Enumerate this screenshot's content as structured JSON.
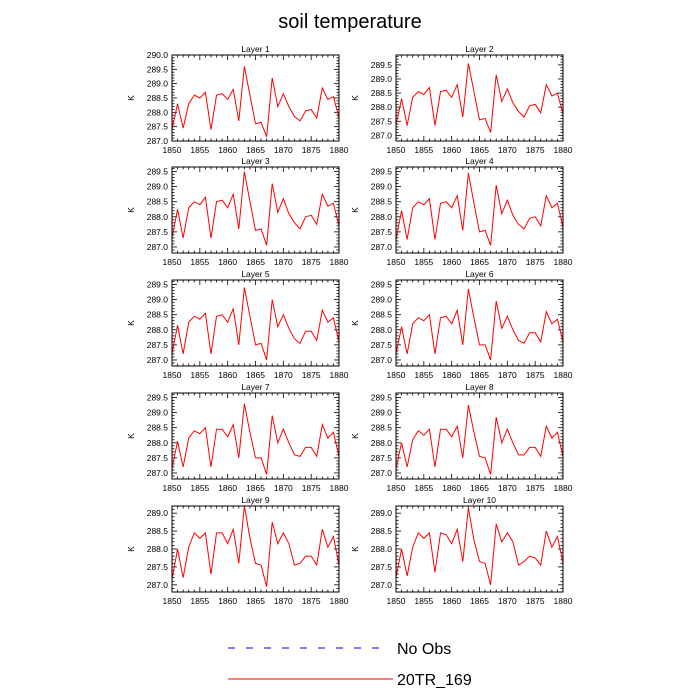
{
  "title": "soil temperature",
  "colors": {
    "model": "#ff0000",
    "obs": "#0000ff"
  },
  "legend": [
    {
      "label": "No Obs",
      "color": "#0000ff",
      "style": "dashed"
    },
    {
      "label": "20TR_169",
      "color": "#ff0000",
      "style": "solid"
    }
  ],
  "chart_data": {
    "type": "line",
    "xlabel": "",
    "ylabel": "K",
    "xlim": [
      1850,
      1880
    ],
    "x_ticks": [
      1850,
      1855,
      1860,
      1865,
      1870,
      1875,
      1880
    ],
    "x": [
      1850,
      1851,
      1852,
      1853,
      1854,
      1855,
      1856,
      1857,
      1858,
      1859,
      1860,
      1861,
      1862,
      1863,
      1864,
      1865,
      1866,
      1867,
      1868,
      1869,
      1870,
      1871,
      1872,
      1873,
      1874,
      1875,
      1876,
      1877,
      1878,
      1879,
      1880
    ],
    "panels": [
      {
        "title": "Layer 1",
        "ylim": [
          287.0,
          290.0
        ],
        "yticks": [
          "287.0",
          "287.5",
          "288.0",
          "288.5",
          "289.0",
          "289.5",
          "290.0"
        ],
        "series": [
          {
            "name": "20TR_169",
            "values": [
              287.4,
              288.3,
              287.45,
              288.3,
              288.6,
              288.5,
              288.7,
              287.4,
              288.6,
              288.65,
              288.45,
              288.8,
              287.7,
              289.6,
              288.6,
              287.6,
              287.65,
              287.15,
              289.2,
              288.2,
              288.65,
              288.2,
              287.85,
              287.7,
              288.05,
              288.1,
              287.8,
              288.85,
              288.45,
              288.55,
              287.8
            ]
          }
        ]
      },
      {
        "title": "Layer 2",
        "ylim": [
          286.8,
          289.85
        ],
        "yticks": [
          "287.0",
          "287.5",
          "288.0",
          "288.5",
          "289.0",
          "289.5"
        ],
        "series": [
          {
            "name": "20TR_169",
            "values": [
              287.35,
              288.3,
              287.35,
              288.35,
              288.55,
              288.45,
              288.7,
              287.35,
              288.55,
              288.6,
              288.35,
              288.8,
              287.65,
              289.55,
              288.55,
              287.55,
              287.6,
              287.1,
              289.15,
              288.2,
              288.65,
              288.15,
              287.85,
              287.65,
              288.05,
              288.1,
              287.8,
              288.8,
              288.4,
              288.5,
              287.75
            ]
          }
        ]
      },
      {
        "title": "Layer 3",
        "ylim": [
          286.8,
          289.65
        ],
        "yticks": [
          "287.0",
          "287.5",
          "288.0",
          "288.5",
          "289.0",
          "289.5"
        ],
        "series": [
          {
            "name": "20TR_169",
            "values": [
              287.3,
              288.25,
              287.3,
              288.3,
              288.5,
              288.4,
              288.65,
              287.3,
              288.5,
              288.55,
              288.3,
              288.75,
              287.6,
              289.5,
              288.5,
              287.55,
              287.6,
              287.05,
              289.1,
              288.15,
              288.6,
              288.1,
              287.8,
              287.6,
              288.0,
              288.05,
              287.75,
              288.75,
              288.35,
              288.45,
              287.7
            ]
          }
        ]
      },
      {
        "title": "Layer 4",
        "ylim": [
          286.8,
          289.65
        ],
        "yticks": [
          "287.0",
          "287.5",
          "288.0",
          "288.5",
          "289.0",
          "289.5"
        ],
        "series": [
          {
            "name": "20TR_169",
            "values": [
              287.25,
              288.2,
              287.25,
              288.3,
              288.5,
              288.4,
              288.6,
              287.25,
              288.45,
              288.5,
              288.3,
              288.7,
              287.55,
              289.45,
              288.45,
              287.5,
              287.55,
              287.05,
              289.05,
              288.1,
              288.55,
              288.05,
              287.75,
              287.6,
              287.95,
              288.0,
              287.7,
              288.7,
              288.3,
              288.45,
              287.65
            ]
          }
        ]
      },
      {
        "title": "Layer 5",
        "ylim": [
          286.8,
          289.65
        ],
        "yticks": [
          "287.0",
          "287.5",
          "288.0",
          "288.5",
          "289.0",
          "289.5"
        ],
        "series": [
          {
            "name": "20TR_169",
            "values": [
              287.2,
              288.15,
              287.2,
              288.25,
              288.45,
              288.35,
              288.55,
              287.2,
              288.45,
              288.5,
              288.25,
              288.7,
              287.5,
              289.4,
              288.45,
              287.5,
              287.55,
              287.0,
              289.0,
              288.1,
              288.5,
              288.05,
              287.7,
              287.55,
              287.95,
              287.95,
              287.65,
              288.65,
              288.25,
              288.4,
              287.6
            ]
          }
        ]
      },
      {
        "title": "Layer 6",
        "ylim": [
          286.8,
          289.65
        ],
        "yticks": [
          "287.0",
          "287.5",
          "288.0",
          "288.5",
          "289.0",
          "289.5"
        ],
        "series": [
          {
            "name": "20TR_169",
            "values": [
              287.2,
              288.1,
              287.2,
              288.2,
              288.4,
              288.3,
              288.5,
              287.2,
              288.4,
              288.45,
              288.2,
              288.65,
              287.5,
              289.35,
              288.4,
              287.5,
              287.5,
              287.0,
              288.95,
              288.05,
              288.45,
              288.0,
              287.65,
              287.55,
              287.9,
              287.9,
              287.6,
              288.6,
              288.2,
              288.35,
              287.6
            ]
          }
        ]
      },
      {
        "title": "Layer 7",
        "ylim": [
          286.8,
          289.65
        ],
        "yticks": [
          "287.0",
          "287.5",
          "288.0",
          "288.5",
          "289.0",
          "289.5"
        ],
        "series": [
          {
            "name": "20TR_169",
            "values": [
              287.15,
              288.05,
              287.2,
              288.15,
              288.4,
              288.3,
              288.5,
              287.2,
              288.45,
              288.45,
              288.2,
              288.6,
              287.5,
              289.3,
              288.35,
              287.5,
              287.5,
              286.95,
              288.9,
              288.0,
              288.45,
              288.0,
              287.6,
              287.55,
              287.85,
              287.85,
              287.55,
              288.6,
              288.15,
              288.35,
              287.55
            ]
          }
        ]
      },
      {
        "title": "Layer 8",
        "ylim": [
          286.8,
          289.65
        ],
        "yticks": [
          "287.0",
          "287.5",
          "288.0",
          "288.5",
          "289.0",
          "289.5"
        ],
        "series": [
          {
            "name": "20TR_169",
            "values": [
              287.15,
              288.0,
              287.2,
              288.1,
              288.4,
              288.25,
              288.45,
              287.2,
              288.45,
              288.45,
              288.2,
              288.55,
              287.5,
              289.25,
              288.35,
              287.55,
              287.5,
              286.95,
              288.85,
              288.0,
              288.45,
              288.0,
              287.6,
              287.6,
              287.85,
              287.85,
              287.55,
              288.55,
              288.15,
              288.35,
              287.55
            ]
          }
        ]
      },
      {
        "title": "Layer 9",
        "ylim": [
          286.8,
          289.2
        ],
        "yticks": [
          "287.0",
          "287.5",
          "288.0",
          "288.5",
          "289.0"
        ],
        "series": [
          {
            "name": "20TR_169",
            "values": [
              287.15,
              288.0,
              287.2,
              288.05,
              288.45,
              288.3,
              288.45,
              287.3,
              288.45,
              288.45,
              288.15,
              288.55,
              287.6,
              289.2,
              288.3,
              287.6,
              287.55,
              286.95,
              288.75,
              288.15,
              288.45,
              288.15,
              287.55,
              287.6,
              287.8,
              287.8,
              287.55,
              288.55,
              288.05,
              288.35,
              287.55
            ]
          }
        ]
      },
      {
        "title": "Layer 10",
        "ylim": [
          286.8,
          289.2
        ],
        "yticks": [
          "287.0",
          "287.5",
          "288.0",
          "288.5",
          "289.0"
        ],
        "series": [
          {
            "name": "20TR_169",
            "values": [
              287.2,
              288.0,
              287.25,
              288.05,
              288.45,
              288.3,
              288.45,
              287.35,
              288.45,
              288.4,
              288.15,
              288.55,
              287.65,
              289.15,
              288.25,
              287.65,
              287.6,
              287.0,
              288.7,
              288.2,
              288.45,
              288.2,
              287.55,
              287.65,
              287.8,
              287.75,
              287.55,
              288.5,
              288.05,
              288.35,
              287.6
            ]
          }
        ]
      }
    ]
  }
}
